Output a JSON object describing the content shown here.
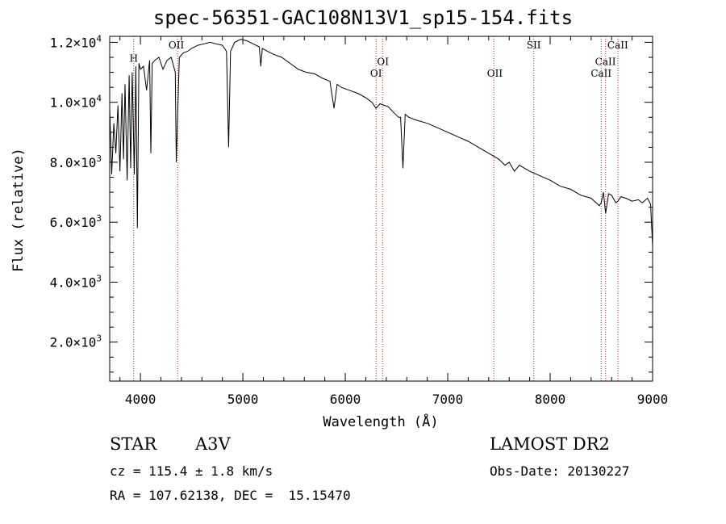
{
  "chart_data": {
    "type": "line",
    "title": "spec-56351-GAC108N13V1_sp15-154.fits",
    "xlabel": "Wavelength (Å)",
    "ylabel": "Flux (relative)",
    "xlim": [
      3700,
      9000
    ],
    "ylim": [
      700,
      12200
    ],
    "x_ticks": [
      4000,
      5000,
      6000,
      7000,
      8000,
      9000
    ],
    "x_tick_labels": [
      "4000",
      "5000",
      "6000",
      "7000",
      "8000",
      "9000"
    ],
    "y_ticks": [
      2000,
      4000,
      6000,
      8000,
      10000,
      12000
    ],
    "y_tick_labels": [
      {
        "mant": "2.0×10",
        "exp": "3"
      },
      {
        "mant": "4.0×10",
        "exp": "3"
      },
      {
        "mant": "6.0×10",
        "exp": "3"
      },
      {
        "mant": "8.0×10",
        "exp": "3"
      },
      {
        "mant": "1.0×10",
        "exp": "4"
      },
      {
        "mant": "1.2×10",
        "exp": "4"
      }
    ],
    "grid": false,
    "series": [
      {
        "x": [
          3700,
          3720,
          3740,
          3760,
          3780,
          3800,
          3820,
          3835,
          3850,
          3870,
          3890,
          3905,
          3920,
          3940,
          3955,
          3970,
          3985,
          4000,
          4030,
          4060,
          4090,
          4102,
          4115,
          4140,
          4180,
          4220,
          4260,
          4300,
          4340,
          4350,
          4380,
          4420,
          4460,
          4500,
          4560,
          4620,
          4680,
          4740,
          4800,
          4840,
          4861,
          4880,
          4920,
          4980,
          5040,
          5100,
          5160,
          5175,
          5190,
          5240,
          5300,
          5380,
          5460,
          5540,
          5620,
          5700,
          5780,
          5850,
          5890,
          5920,
          5960,
          6040,
          6120,
          6200,
          6260,
          6300,
          6340,
          6380,
          6420,
          6460,
          6520,
          6540,
          6563,
          6585,
          6620,
          6700,
          6800,
          6900,
          7000,
          7100,
          7200,
          7300,
          7400,
          7500,
          7560,
          7600,
          7650,
          7700,
          7800,
          7900,
          8000,
          8100,
          8200,
          8300,
          8400,
          8480,
          8498,
          8520,
          8542,
          8570,
          8600,
          8640,
          8662,
          8690,
          8740,
          8800,
          8860,
          8900,
          8950,
          8980,
          9000
        ],
        "y": [
          9800,
          7600,
          9300,
          8300,
          9900,
          7700,
          10300,
          8100,
          10600,
          7400,
          10900,
          7800,
          11000,
          7600,
          11200,
          5800,
          11300,
          11100,
          11200,
          10400,
          11400,
          8300,
          11300,
          11400,
          11500,
          11100,
          11400,
          11500,
          11000,
          8000,
          11500,
          11650,
          11700,
          11800,
          11900,
          11950,
          12000,
          11950,
          11900,
          11700,
          8500,
          11700,
          12000,
          12100,
          12050,
          11950,
          11850,
          11200,
          11800,
          11700,
          11600,
          11500,
          11300,
          11100,
          11000,
          10950,
          10800,
          10700,
          9800,
          10600,
          10500,
          10400,
          10300,
          10150,
          10000,
          9800,
          9950,
          9900,
          9850,
          9700,
          9500,
          9500,
          7800,
          9600,
          9500,
          9400,
          9300,
          9150,
          9000,
          8850,
          8700,
          8500,
          8300,
          8100,
          7900,
          8000,
          7700,
          7900,
          7700,
          7550,
          7400,
          7200,
          7100,
          6900,
          6800,
          6550,
          6650,
          7000,
          6300,
          6950,
          6900,
          6650,
          6700,
          6850,
          6800,
          6700,
          6750,
          6650,
          6800,
          6600,
          5200
        ]
      }
    ],
    "annotations": [
      {
        "label": "H",
        "x": 3934,
        "y": 11350
      },
      {
        "label": "OII",
        "x": 4350,
        "y": 11800
      },
      {
        "label": "OI",
        "x": 6367,
        "y": 11250
      },
      {
        "label": "OI",
        "x": 6300,
        "y": 10850
      },
      {
        "label": "OII",
        "x": 7460,
        "y": 10850
      },
      {
        "label": "SII",
        "x": 7840,
        "y": 11800
      },
      {
        "label": "CaII",
        "x": 8660,
        "y": 11800
      },
      {
        "label": "CaII",
        "x": 8540,
        "y": 11250
      },
      {
        "label": "CaII",
        "x": 8498,
        "y": 10850
      }
    ],
    "line_markers": [
      3934,
      4363,
      6300,
      6363,
      7450,
      7840,
      8498,
      8542,
      8662
    ]
  },
  "info": {
    "object_class": "STAR",
    "subclass": "A3V",
    "survey": "LAMOST DR2",
    "velocity": "cz = 115.4 ± 1.8 km/s",
    "obs_date": "Obs-Date: 20130227",
    "coords": "RA = 107.62138, DEC =  15.15470"
  }
}
